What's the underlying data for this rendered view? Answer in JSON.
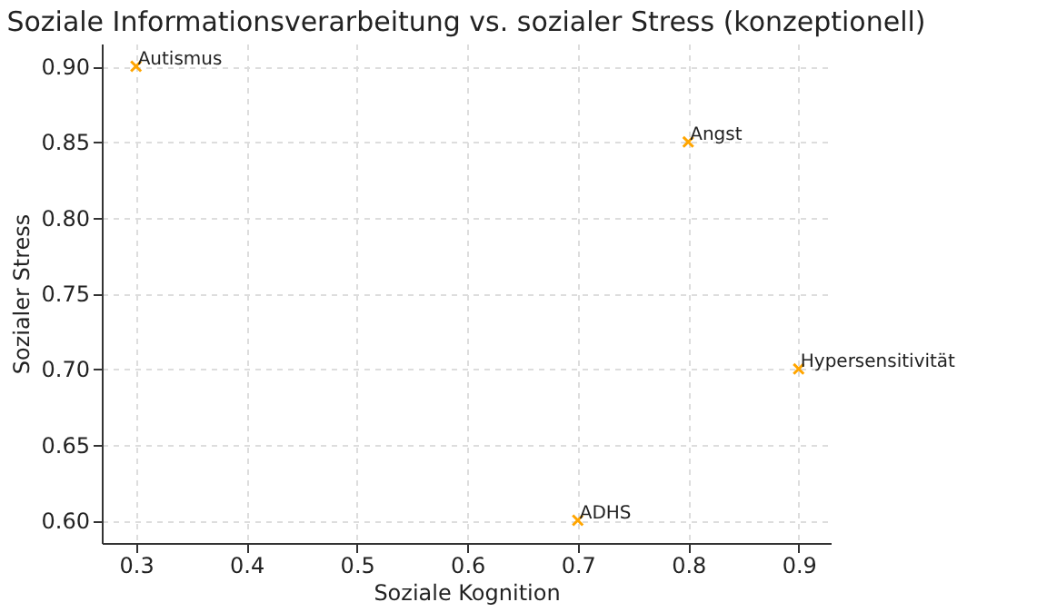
{
  "chart_data": {
    "type": "scatter",
    "title": "Soziale Informationsverarbeitung vs. sozialer Stress (konzeptionell)",
    "xlabel": "Soziale Kognition",
    "ylabel": "Sozialer Stress",
    "series": [
      {
        "color": "#ffa500",
        "x": [
          0.3,
          0.8,
          0.9,
          0.7
        ],
        "values": [
          0.9,
          0.85,
          0.7,
          0.6
        ]
      }
    ],
    "annotations": [
      {
        "text": "Autismus",
        "x": 0.3,
        "y": 0.9
      },
      {
        "text": "Angst",
        "x": 0.8,
        "y": 0.85
      },
      {
        "text": "Hypersensitivität",
        "x": 0.9,
        "y": 0.7
      },
      {
        "text": "ADHS",
        "x": 0.7,
        "y": 0.6
      }
    ],
    "xlim": [
      0.269,
      0.929
    ],
    "ylim": [
      0.585,
      0.915
    ],
    "xticks": [
      0.3,
      0.4,
      0.5,
      0.6,
      0.7,
      0.8,
      0.9
    ],
    "yticks": [
      {
        "value": 0.6,
        "label": "0.60"
      },
      0.65,
      {
        "value": 0.7,
        "label": "0.70"
      },
      0.75,
      {
        "value": 0.8,
        "label": "0.80"
      },
      0.85,
      {
        "value": 0.9,
        "label": "0.90"
      }
    ],
    "grid": true,
    "marker": "cross"
  }
}
